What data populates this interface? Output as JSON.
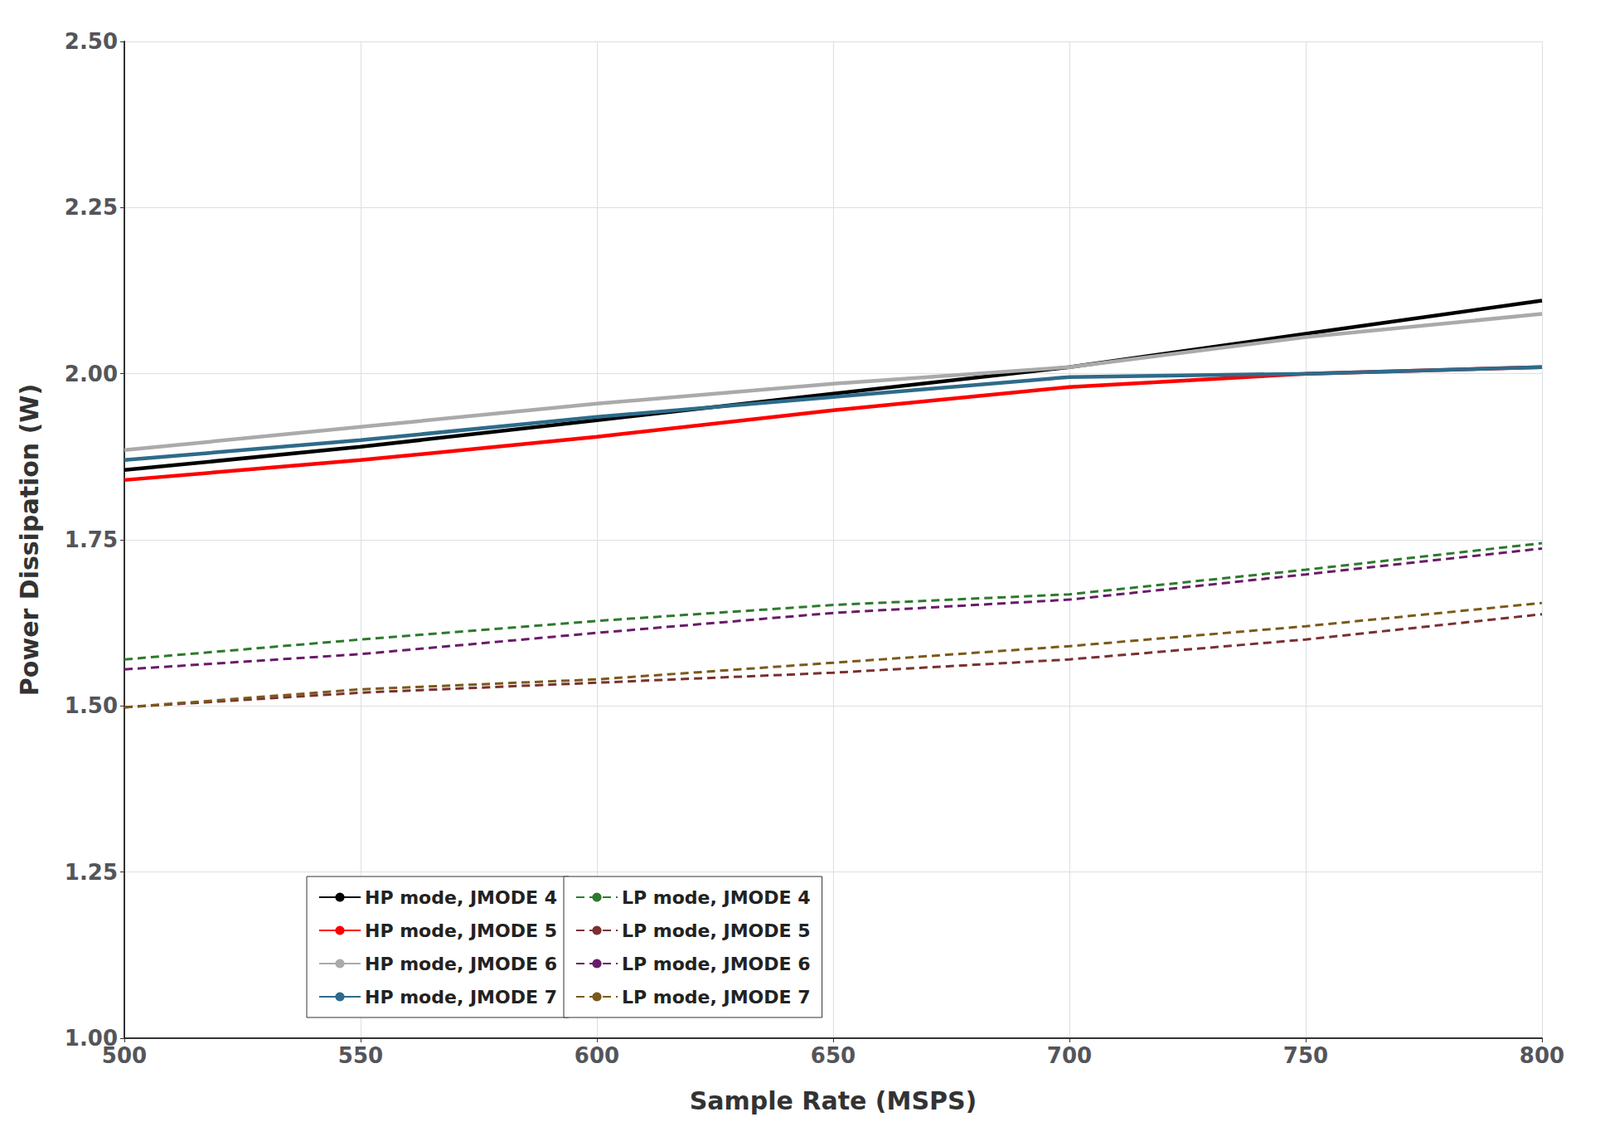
{
  "chart_data": {
    "type": "line",
    "x": [
      500,
      550,
      600,
      650,
      700,
      750,
      800
    ],
    "series": [
      {
        "name": "HP mode, JMODE 4",
        "color": "#000000",
        "line_style": "solid",
        "values": [
          1.855,
          1.89,
          1.93,
          1.97,
          2.01,
          2.06,
          2.11
        ]
      },
      {
        "name": "HP mode, JMODE 5",
        "color": "#ff0000",
        "line_style": "solid",
        "values": [
          1.84,
          1.87,
          1.905,
          1.945,
          1.98,
          2.0,
          2.01
        ]
      },
      {
        "name": "HP mode, JMODE 6",
        "color": "#aaaaaa",
        "line_style": "solid",
        "values": [
          1.885,
          1.92,
          1.955,
          1.985,
          2.01,
          2.055,
          2.09
        ]
      },
      {
        "name": "HP mode, JMODE 7",
        "color": "#2e6b8a",
        "line_style": "solid",
        "values": [
          1.87,
          1.9,
          1.935,
          1.965,
          1.995,
          2.0,
          2.01
        ]
      },
      {
        "name": "LP mode, JMODE 4",
        "color": "#2d7a2d",
        "line_style": "dashed",
        "values": [
          1.57,
          1.6,
          1.628,
          1.652,
          1.668,
          1.705,
          1.745
        ]
      },
      {
        "name": "LP mode, JMODE 5",
        "color": "#7a3030",
        "line_style": "dashed",
        "values": [
          1.498,
          1.52,
          1.535,
          1.55,
          1.57,
          1.6,
          1.638
        ]
      },
      {
        "name": "LP mode, JMODE 6",
        "color": "#6a1a6a",
        "line_style": "dashed",
        "values": [
          1.555,
          1.578,
          1.61,
          1.64,
          1.66,
          1.698,
          1.737
        ]
      },
      {
        "name": "LP mode, JMODE 7",
        "color": "#7a5a1a",
        "line_style": "dashed",
        "values": [
          1.498,
          1.525,
          1.54,
          1.565,
          1.59,
          1.62,
          1.655
        ]
      }
    ],
    "xlabel": "Sample Rate (MSPS)",
    "ylabel": "Power Dissipation (W)",
    "xlim": [
      500,
      800
    ],
    "ylim": [
      1.0,
      2.5
    ],
    "xticks": [
      500,
      550,
      600,
      650,
      700,
      750,
      800
    ],
    "yticks": [
      {
        "value": 1.0,
        "label": "1.00"
      },
      {
        "value": 1.25,
        "label": "1.25"
      },
      {
        "value": 1.5,
        "label": "1.50"
      },
      {
        "value": 1.75,
        "label": "1.75"
      },
      {
        "value": 2.0,
        "label": "2.00"
      },
      {
        "value": 2.25,
        "label": "2.25"
      },
      {
        "value": 2.5,
        "label": "2.50"
      }
    ],
    "grid": true,
    "legend": "lower left"
  }
}
